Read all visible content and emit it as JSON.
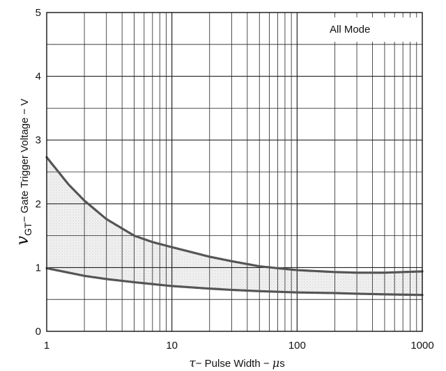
{
  "chart_data": {
    "type": "line",
    "x_scale": "log",
    "xlim": [
      1,
      1000
    ],
    "ylim": [
      0,
      5
    ],
    "grid": true,
    "x_ticks": [
      "1",
      "10",
      "100",
      "1000"
    ],
    "y_ticks": [
      "0",
      "1",
      "2",
      "3",
      "4",
      "5"
    ],
    "xlabel": {
      "symbol": "τ",
      "text": "− Pulse Width − ",
      "unit_symbol": "μ",
      "unit_rest": "s"
    },
    "ylabel": {
      "symbol": "v",
      "subscript": "GT",
      "text": "− Gate Trigger Voltage − V"
    },
    "legend": "All Mode",
    "shaded_region": "between series",
    "series": [
      {
        "x": [
          1,
          1.5,
          2,
          3,
          5,
          7,
          10,
          20,
          30,
          50,
          70,
          100,
          200,
          300,
          500,
          700,
          1000
        ],
        "y": [
          2.73,
          2.3,
          2.05,
          1.76,
          1.5,
          1.4,
          1.32,
          1.17,
          1.1,
          1.02,
          0.99,
          0.96,
          0.93,
          0.92,
          0.92,
          0.93,
          0.94
        ]
      },
      {
        "x": [
          1,
          2,
          3,
          5,
          10,
          20,
          30,
          50,
          100,
          200,
          300,
          500,
          1000
        ],
        "y": [
          0.99,
          0.87,
          0.82,
          0.77,
          0.71,
          0.67,
          0.65,
          0.63,
          0.61,
          0.6,
          0.59,
          0.58,
          0.57
        ]
      }
    ]
  }
}
